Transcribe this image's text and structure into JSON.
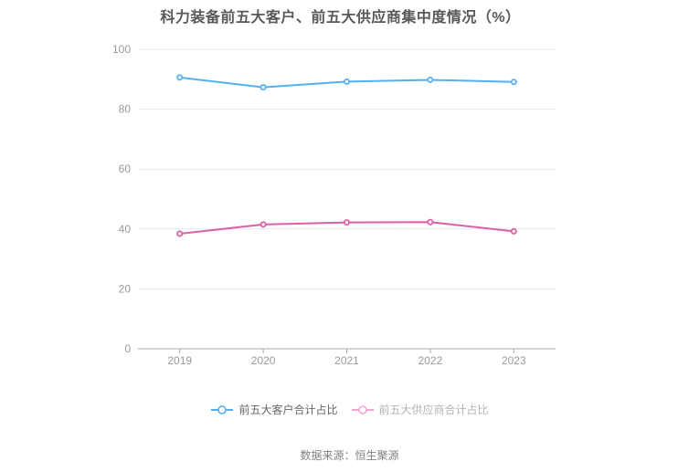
{
  "chart_data": {
    "type": "line",
    "title": "科力装备前五大客户、前五大供应商集中度情况（%）",
    "categories": [
      "2019",
      "2020",
      "2021",
      "2022",
      "2023"
    ],
    "series": [
      {
        "name": "前五大客户合计占比",
        "values": [
          90.6,
          87.3,
          89.2,
          89.8,
          89.1
        ],
        "color": "#54b0f0"
      },
      {
        "name": "前五大供应商合计占比",
        "values": [
          38.4,
          41.5,
          42.2,
          42.3,
          39.2
        ],
        "color": "#dd5fa5"
      }
    ],
    "xlabel": "",
    "ylabel": "",
    "ylim": [
      0,
      100
    ],
    "y_ticks": [
      0,
      20,
      40,
      60,
      80,
      100
    ],
    "grid": true,
    "legend_position": "bottom",
    "source": "数据来源：恒生聚源"
  },
  "legend": {
    "items": [
      {
        "label": "前五大客户合计占比",
        "marker_color": "#54b0f0",
        "text_color": "#666666"
      },
      {
        "label": "前五大供应商合计占比",
        "marker_color": "#f0a6cf",
        "text_color": "#b3b3b3"
      }
    ]
  },
  "colors": {
    "background": "#ffffff",
    "title": "#595959",
    "gridline": "#e4e7ef",
    "axis_line": "#aaaaaa",
    "tick_label": "#999999",
    "source_text": "#808080",
    "marker_fill": "#ffffff"
  }
}
